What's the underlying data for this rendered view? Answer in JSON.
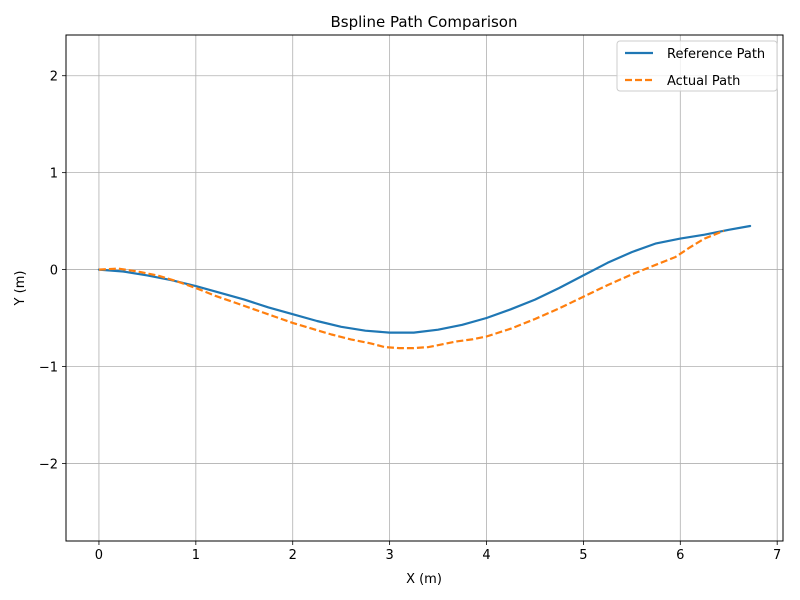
{
  "chart_data": {
    "type": "line",
    "title": "Bspline Path Comparison",
    "xlabel": "X (m)",
    "ylabel": "Y (m)",
    "xlim": [
      -0.34,
      7.06
    ],
    "ylim": [
      -2.8,
      2.42
    ],
    "xticks": [
      0,
      1,
      2,
      3,
      4,
      5,
      6,
      7
    ],
    "yticks": [
      -2,
      -1,
      0,
      1,
      2
    ],
    "ytick_labels": [
      "−2",
      "−1",
      "0",
      "1",
      "2"
    ],
    "grid": true,
    "legend_position": "top-right",
    "series": [
      {
        "name": "Reference Path",
        "color": "#1f77b4",
        "style": "solid",
        "x": [
          0,
          0.25,
          0.5,
          0.75,
          1.0,
          1.25,
          1.5,
          1.75,
          2.0,
          2.25,
          2.5,
          2.75,
          3.0,
          3.25,
          3.5,
          3.75,
          4.0,
          4.25,
          4.5,
          4.75,
          5.0,
          5.25,
          5.5,
          5.75,
          6.0,
          6.25,
          6.5,
          6.72
        ],
        "y": [
          0.0,
          -0.02,
          -0.06,
          -0.11,
          -0.17,
          -0.24,
          -0.31,
          -0.39,
          -0.46,
          -0.53,
          -0.59,
          -0.63,
          -0.65,
          -0.65,
          -0.62,
          -0.57,
          -0.5,
          -0.41,
          -0.31,
          -0.19,
          -0.06,
          0.07,
          0.18,
          0.27,
          0.32,
          0.36,
          0.41,
          0.45
        ]
      },
      {
        "name": "Actual Path",
        "color": "#ff7f0e",
        "style": "dashed",
        "x": [
          0,
          0.2,
          0.4,
          0.6,
          0.8,
          1.0,
          1.2,
          1.4,
          1.6,
          1.8,
          2.0,
          2.2,
          2.4,
          2.6,
          2.8,
          2.95,
          3.1,
          3.25,
          3.4,
          3.55,
          3.7,
          3.85,
          4.0,
          4.25,
          4.5,
          4.75,
          5.0,
          5.25,
          5.5,
          5.75,
          5.95,
          6.1,
          6.25,
          6.45
        ],
        "y": [
          0.0,
          0.01,
          -0.02,
          -0.06,
          -0.12,
          -0.19,
          -0.27,
          -0.34,
          -0.41,
          -0.48,
          -0.55,
          -0.61,
          -0.67,
          -0.72,
          -0.76,
          -0.8,
          -0.81,
          -0.81,
          -0.8,
          -0.77,
          -0.74,
          -0.72,
          -0.69,
          -0.61,
          -0.51,
          -0.4,
          -0.28,
          -0.16,
          -0.05,
          0.05,
          0.13,
          0.23,
          0.32,
          0.4
        ]
      }
    ]
  }
}
